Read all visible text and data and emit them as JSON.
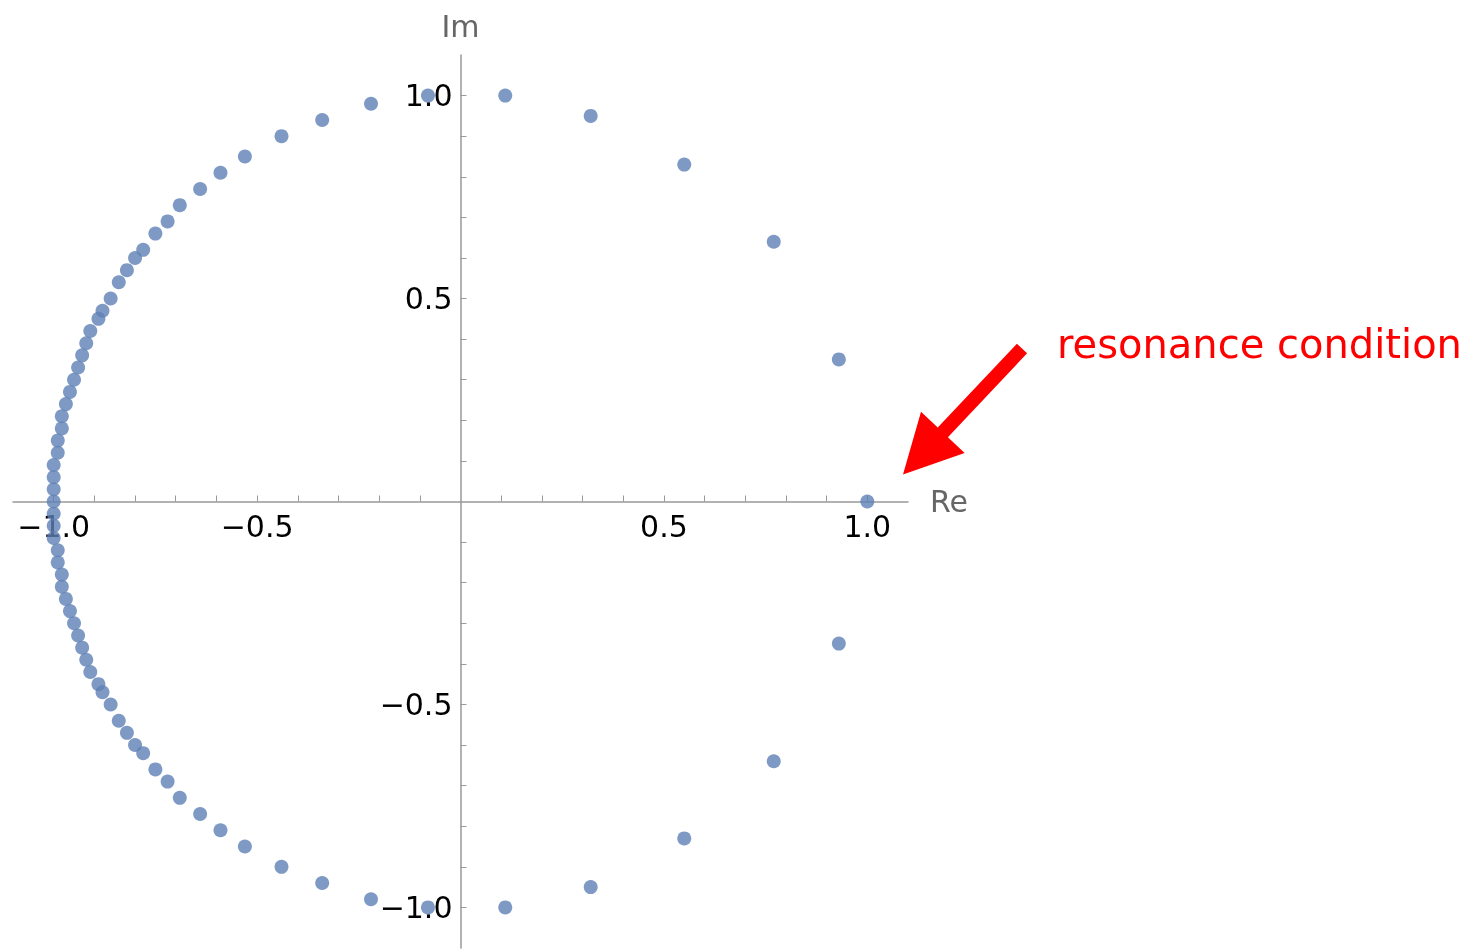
{
  "chart_data": {
    "type": "scatter",
    "xlabel": "Re",
    "ylabel": "Im",
    "xlim": [
      -1.1,
      1.1
    ],
    "ylim": [
      -1.1,
      1.1
    ],
    "xticks": [
      {
        "value": -1,
        "label": "−1.0"
      },
      {
        "value": -0.9,
        "label": null
      },
      {
        "value": -0.8,
        "label": null
      },
      {
        "value": -0.7,
        "label": null
      },
      {
        "value": -0.6,
        "label": null
      },
      {
        "value": -0.5,
        "label": "−0.5"
      },
      {
        "value": -0.4,
        "label": null
      },
      {
        "value": -0.3,
        "label": null
      },
      {
        "value": -0.2,
        "label": null
      },
      {
        "value": -0.1,
        "label": null
      },
      {
        "value": 0.1,
        "label": null
      },
      {
        "value": 0.2,
        "label": null
      },
      {
        "value": 0.3,
        "label": null
      },
      {
        "value": 0.4,
        "label": null
      },
      {
        "value": 0.5,
        "label": "0.5"
      },
      {
        "value": 0.6,
        "label": null
      },
      {
        "value": 0.7,
        "label": null
      },
      {
        "value": 0.8,
        "label": null
      },
      {
        "value": 0.9,
        "label": null
      },
      {
        "value": 1,
        "label": "1.0"
      }
    ],
    "yticks": [
      {
        "value": -1,
        "label": "−1.0"
      },
      {
        "value": -0.9,
        "label": null
      },
      {
        "value": -0.8,
        "label": null
      },
      {
        "value": -0.7,
        "label": null
      },
      {
        "value": -0.6,
        "label": null
      },
      {
        "value": -0.5,
        "label": "−0.5"
      },
      {
        "value": -0.4,
        "label": null
      },
      {
        "value": -0.3,
        "label": null
      },
      {
        "value": -0.2,
        "label": null
      },
      {
        "value": -0.1,
        "label": null
      },
      {
        "value": 0.1,
        "label": null
      },
      {
        "value": 0.2,
        "label": null
      },
      {
        "value": 0.3,
        "label": null
      },
      {
        "value": 0.4,
        "label": null
      },
      {
        "value": 0.5,
        "label": "0.5"
      },
      {
        "value": 0.6,
        "label": null
      },
      {
        "value": 0.7,
        "label": null
      },
      {
        "value": 0.8,
        "label": null
      },
      {
        "value": 0.9,
        "label": null
      },
      {
        "value": 1,
        "label": "1.0"
      }
    ],
    "grid": false,
    "marker": "circle",
    "annotations": [
      "resonance condition"
    ],
    "series": [
      {
        "color": "#5e81b5",
        "x": [
          1.0,
          0.93,
          0.77,
          0.55,
          0.32,
          0.11,
          -0.08,
          -0.22,
          -0.34,
          -0.44,
          -0.53,
          -0.59,
          -0.64,
          -0.69,
          -0.72,
          -0.75,
          -0.78,
          -0.8,
          -0.82,
          -0.84,
          -0.86,
          -0.88,
          -0.89,
          -0.91,
          -0.92,
          -0.93,
          -0.94,
          -0.95,
          -0.96,
          -0.97,
          -0.98,
          -0.98,
          -0.99,
          -0.99,
          -1.0,
          -1.0,
          -1.0,
          -1.0,
          -1.0,
          -1.0,
          -1.0,
          -0.99,
          -0.99,
          -0.98,
          -0.98,
          -0.97,
          -0.96,
          -0.95,
          -0.94,
          -0.93,
          -0.92,
          -0.91,
          -0.89,
          -0.88,
          -0.86,
          -0.84,
          -0.82,
          -0.8,
          -0.78,
          -0.75,
          -0.72,
          -0.69,
          -0.64,
          -0.59,
          -0.53,
          -0.44,
          -0.34,
          -0.22,
          -0.08,
          0.11,
          0.32,
          0.55,
          0.77,
          0.93
        ],
        "values": [
          0,
          0.35,
          0.64,
          0.83,
          0.95,
          1.0,
          1.0,
          0.98,
          0.94,
          0.9,
          0.85,
          0.81,
          0.77,
          0.73,
          0.69,
          0.66,
          0.62,
          0.6,
          0.57,
          0.54,
          0.5,
          0.47,
          0.45,
          0.42,
          0.39,
          0.36,
          0.33,
          0.3,
          0.27,
          0.24,
          0.21,
          0.18,
          0.15,
          0.12,
          0.09,
          0.06,
          0.03,
          0,
          -0.03,
          -0.06,
          -0.09,
          -0.12,
          -0.15,
          -0.18,
          -0.21,
          -0.24,
          -0.27,
          -0.3,
          -0.33,
          -0.36,
          -0.39,
          -0.42,
          -0.45,
          -0.47,
          -0.5,
          -0.54,
          -0.57,
          -0.6,
          -0.62,
          -0.66,
          -0.69,
          -0.73,
          -0.77,
          -0.81,
          -0.85,
          -0.9,
          -0.94,
          -0.98,
          -1.0,
          -1.0,
          -0.95,
          -0.83,
          -0.64,
          -0.35
        ]
      }
    ]
  }
}
